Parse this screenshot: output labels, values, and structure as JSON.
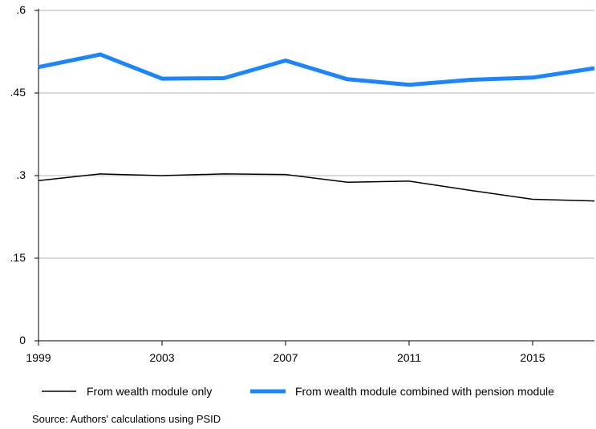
{
  "chart_data": {
    "type": "line",
    "x": [
      1999,
      2001,
      2003,
      2005,
      2007,
      2009,
      2011,
      2013,
      2015,
      2017
    ],
    "series": [
      {
        "name": "From wealth module only",
        "values": [
          0.291,
          0.303,
          0.3,
          0.303,
          0.302,
          0.288,
          0.29,
          0.273,
          0.257,
          0.254
        ],
        "color": "#000000"
      },
      {
        "name": "From wealth module combined with pension module",
        "values": [
          0.497,
          0.52,
          0.476,
          0.477,
          0.509,
          0.475,
          0.465,
          0.474,
          0.478,
          0.495
        ],
        "color": "#1a85ff"
      }
    ],
    "x_ticks": [
      1999,
      2003,
      2007,
      2011,
      2015
    ],
    "x_tick_labels": [
      "1999",
      "2003",
      "2007",
      "2011",
      "2015"
    ],
    "y_ticks": [
      0,
      0.15,
      0.3,
      0.45,
      0.6
    ],
    "y_tick_labels": [
      "0",
      ".15",
      ".3",
      ".45",
      ".6"
    ],
    "xlim": [
      1999,
      2017
    ],
    "ylim": [
      0,
      0.6
    ],
    "grid": "horizontal",
    "legend_position": "bottom",
    "title": "",
    "xlabel": "",
    "ylabel": ""
  },
  "note": "Source: Authors' calculations using PSID"
}
